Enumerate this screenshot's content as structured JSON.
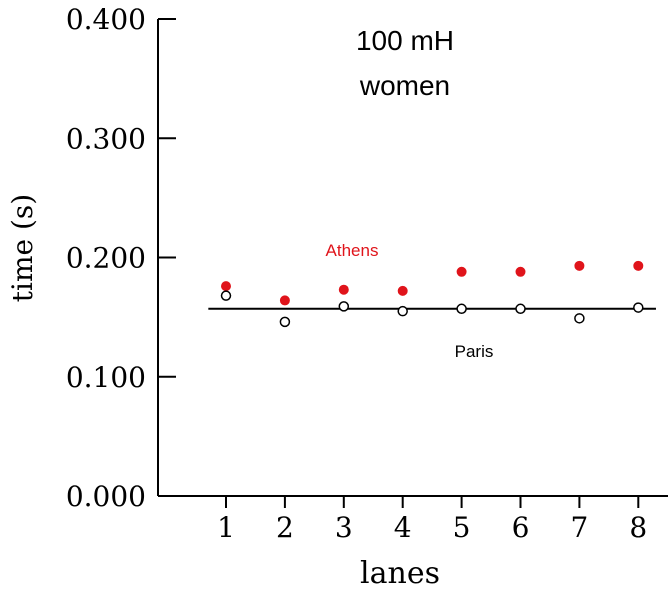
{
  "chart_data": {
    "type": "scatter",
    "title": "100 mH\nwomen",
    "title_lines": [
      "100 mH",
      "women"
    ],
    "xlabel": "lanes",
    "ylabel": "time (s)",
    "x_ticks": [
      1,
      2,
      3,
      4,
      5,
      6,
      7,
      8
    ],
    "x_tick_labels": [
      "1",
      "2",
      "3",
      "4",
      "5",
      "6",
      "7",
      "8"
    ],
    "y_ticks": [
      0.0,
      0.1,
      0.2,
      0.3,
      0.4
    ],
    "y_tick_labels": [
      "0.000",
      "0.100",
      "0.200",
      "0.300",
      "0.400"
    ],
    "xlim": [
      0,
      8.2
    ],
    "ylim": [
      0,
      0.4
    ],
    "grid": false,
    "series": [
      {
        "name": "Athens",
        "color": "#e0141b",
        "marker": "filled-circle",
        "x": [
          1,
          2,
          3,
          4,
          5,
          6,
          7,
          8
        ],
        "y": [
          0.176,
          0.164,
          0.173,
          0.172,
          0.188,
          0.188,
          0.193,
          0.193
        ]
      },
      {
        "name": "Paris",
        "color": "#000000",
        "marker": "open-circle",
        "x": [
          1,
          2,
          3,
          4,
          5,
          6,
          7,
          8
        ],
        "y": [
          0.168,
          0.146,
          0.159,
          0.155,
          0.157,
          0.157,
          0.149,
          0.158
        ]
      }
    ],
    "reference_line": {
      "y": 0.157,
      "x_from": 0.7,
      "x_to": 8.3,
      "color": "#000000"
    }
  }
}
